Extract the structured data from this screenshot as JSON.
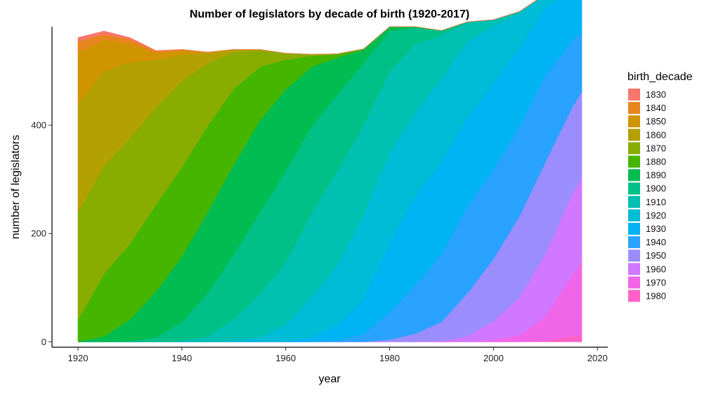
{
  "chart_data": {
    "type": "area",
    "stacked": true,
    "title": "Number of legislators by decade of birth (1920-2017)",
    "xlabel": "year",
    "ylabel": "number of legislators",
    "xlim": [
      1915,
      2022
    ],
    "ylim": [
      -10,
      582
    ],
    "x_ticks": [
      1920,
      1940,
      1960,
      1980,
      2000,
      2020
    ],
    "y_ticks": [
      0,
      200,
      400
    ],
    "grid": false,
    "legend": {
      "title": "birth_decade",
      "position": "right"
    },
    "x": [
      1920,
      1925,
      1930,
      1935,
      1940,
      1945,
      1950,
      1955,
      1960,
      1965,
      1970,
      1975,
      1980,
      1985,
      1990,
      1995,
      2000,
      2005,
      2010,
      2015,
      2017
    ],
    "series": [
      {
        "name": "1830",
        "color": "#F8766D",
        "values": [
          7,
          6,
          3,
          1,
          0,
          0,
          0,
          0,
          0,
          0,
          0,
          0,
          0,
          0,
          0,
          0,
          0,
          0,
          0,
          0,
          0
        ]
      },
      {
        "name": "1840",
        "color": "#E7851E",
        "values": [
          20,
          10,
          8,
          4,
          2,
          0,
          0,
          0,
          0,
          0,
          0,
          0,
          0,
          0,
          0,
          0,
          0,
          0,
          0,
          0,
          0
        ]
      },
      {
        "name": "1850",
        "color": "#D09400",
        "values": [
          95,
          58,
          35,
          12,
          8,
          2,
          0,
          0,
          0,
          0,
          0,
          0,
          0,
          0,
          0,
          0,
          0,
          0,
          0,
          0,
          0
        ]
      },
      {
        "name": "1860",
        "color": "#B2A100",
        "values": [
          200,
          175,
          140,
          88,
          48,
          18,
          5,
          2,
          0,
          0,
          0,
          0,
          0,
          0,
          0,
          0,
          0,
          0,
          0,
          0,
          0
        ]
      },
      {
        "name": "1870",
        "color": "#89AC00",
        "values": [
          200,
          200,
          195,
          180,
          160,
          115,
          68,
          30,
          12,
          3,
          1,
          0,
          0,
          0,
          0,
          0,
          0,
          0,
          0,
          0,
          0
        ]
      },
      {
        "name": "1880",
        "color": "#45B500",
        "values": [
          40,
          115,
          140,
          160,
          165,
          160,
          140,
          100,
          55,
          20,
          6,
          1,
          0,
          0,
          0,
          0,
          0,
          0,
          0,
          0,
          0
        ]
      },
      {
        "name": "1890",
        "color": "#00BC51",
        "values": [
          0,
          10,
          40,
          85,
          120,
          150,
          165,
          170,
          150,
          110,
          68,
          25,
          8,
          2,
          0,
          0,
          0,
          0,
          0,
          0,
          0
        ]
      },
      {
        "name": "1900",
        "color": "#00C087",
        "values": [
          0,
          0,
          1,
          8,
          35,
          80,
          120,
          150,
          170,
          160,
          140,
          115,
          75,
          30,
          8,
          1,
          0,
          0,
          0,
          0,
          0
        ]
      },
      {
        "name": "1910",
        "color": "#00C0B2",
        "values": [
          0,
          0,
          0,
          0,
          2,
          10,
          40,
          80,
          115,
          155,
          175,
          165,
          150,
          125,
          80,
          35,
          12,
          3,
          0,
          0,
          0
        ]
      },
      {
        "name": "1920",
        "color": "#00BCD6",
        "values": [
          0,
          0,
          0,
          0,
          0,
          0,
          2,
          8,
          30,
          75,
          110,
          155,
          165,
          155,
          155,
          140,
          105,
          65,
          25,
          5,
          2
        ]
      },
      {
        "name": "1930",
        "color": "#00B3F2",
        "values": [
          0,
          0,
          0,
          0,
          0,
          0,
          0,
          0,
          1,
          8,
          30,
          65,
          130,
          165,
          170,
          165,
          160,
          145,
          125,
          100,
          90
        ]
      },
      {
        "name": "1940",
        "color": "#29A3FF",
        "values": [
          0,
          0,
          0,
          0,
          0,
          0,
          0,
          0,
          0,
          0,
          2,
          15,
          50,
          90,
          125,
          160,
          165,
          165,
          160,
          125,
          110
        ]
      },
      {
        "name": "1950",
        "color": "#9C8DFF",
        "values": [
          0,
          0,
          0,
          0,
          0,
          0,
          0,
          0,
          0,
          0,
          0,
          0,
          4,
          15,
          35,
          80,
          115,
          150,
          170,
          160,
          160
        ]
      },
      {
        "name": "1960",
        "color": "#D277FF",
        "values": [
          0,
          0,
          0,
          0,
          0,
          0,
          0,
          0,
          0,
          0,
          0,
          0,
          0,
          0,
          2,
          10,
          35,
          70,
          115,
          150,
          155
        ]
      },
      {
        "name": "1970",
        "color": "#F166E8",
        "values": [
          0,
          0,
          0,
          0,
          0,
          0,
          0,
          0,
          0,
          0,
          0,
          0,
          0,
          0,
          0,
          0,
          3,
          12,
          45,
          110,
          135
        ]
      },
      {
        "name": "1980",
        "color": "#FF61C7",
        "values": [
          0,
          0,
          0,
          0,
          0,
          0,
          0,
          0,
          0,
          0,
          0,
          0,
          0,
          0,
          0,
          0,
          0,
          0,
          2,
          10,
          12
        ]
      }
    ]
  }
}
